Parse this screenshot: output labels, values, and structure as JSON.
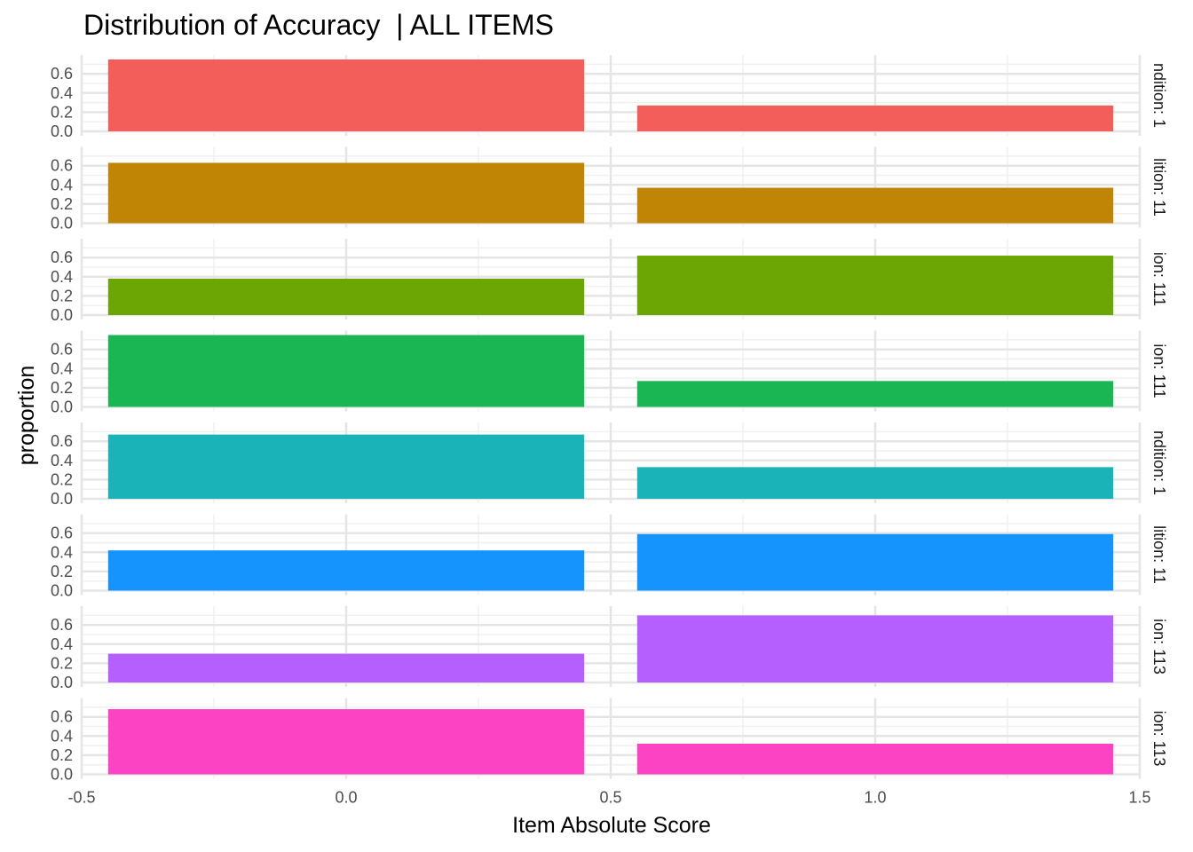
{
  "chart_data": {
    "type": "bar",
    "title": "Distribution of Accuracy  | ALL ITEMS",
    "xlabel": "Item Absolute Score",
    "ylabel": "proportion",
    "x": [
      0,
      1
    ],
    "bar_width": 0.9,
    "xlim": [
      -0.5,
      1.5
    ],
    "xticks": [
      "-0.5",
      "0.0",
      "0.5",
      "1.0",
      "1.5"
    ],
    "ylim": [
      0,
      0.75
    ],
    "yticks": [
      "0.0",
      "0.2",
      "0.4",
      "0.6"
    ],
    "grid": true,
    "facets": [
      {
        "strip_label": "ndition: 1",
        "color": "#F35E5A",
        "values": [
          0.75,
          0.27
        ]
      },
      {
        "strip_label": "lition: 11",
        "color": "#C08505",
        "values": [
          0.63,
          0.37
        ]
      },
      {
        "strip_label": "ion: 111",
        "color": "#6CA605",
        "values": [
          0.38,
          0.62
        ]
      },
      {
        "strip_label": "ion: 111",
        "color": "#19B653",
        "values": [
          0.75,
          0.27
        ]
      },
      {
        "strip_label": "ndition: 1",
        "color": "#19B3B8",
        "values": [
          0.67,
          0.33
        ]
      },
      {
        "strip_label": "lition: 11",
        "color": "#1494FC",
        "values": [
          0.42,
          0.59
        ]
      },
      {
        "strip_label": "ion: 113",
        "color": "#B65FFF",
        "values": [
          0.3,
          0.7
        ]
      },
      {
        "strip_label": "ion: 113",
        "color": "#FC43C3",
        "values": [
          0.68,
          0.32
        ]
      }
    ]
  }
}
